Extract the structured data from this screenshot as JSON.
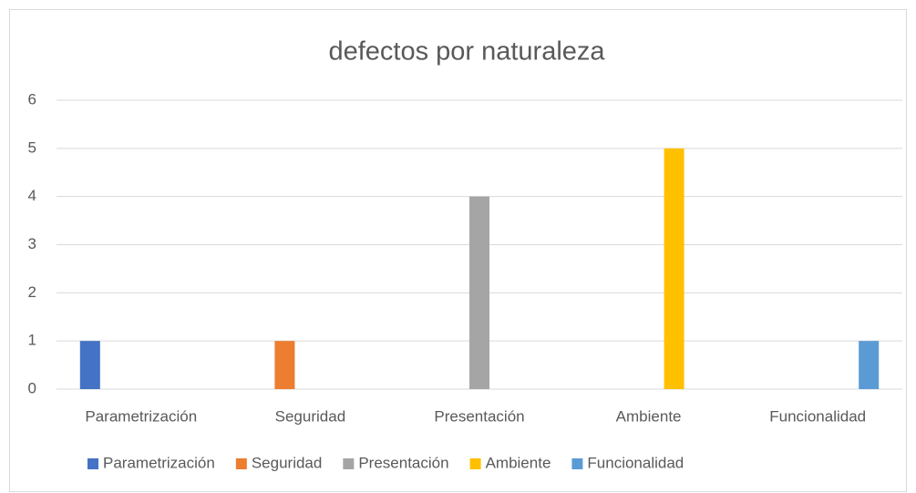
{
  "chart_data": {
    "type": "bar",
    "title": "defectos por naturaleza",
    "categories": [
      "Parametrización",
      "Seguridad",
      "Presentación",
      "Ambiente",
      "Funcionalidad"
    ],
    "series": [
      {
        "name": "Parametrización",
        "color": "#4472c4",
        "values": [
          1,
          null,
          null,
          null,
          null
        ]
      },
      {
        "name": "Seguridad",
        "color": "#ed7d31",
        "values": [
          null,
          1,
          null,
          null,
          null
        ]
      },
      {
        "name": "Presentación",
        "color": "#a5a5a5",
        "values": [
          null,
          null,
          4,
          null,
          null
        ]
      },
      {
        "name": "Ambiente",
        "color": "#ffc000",
        "values": [
          null,
          null,
          null,
          5,
          null
        ]
      },
      {
        "name": "Funcionalidad",
        "color": "#5b9bd5",
        "values": [
          null,
          null,
          null,
          null,
          1
        ]
      }
    ],
    "ylim": [
      0,
      6
    ],
    "yticks": [
      0,
      1,
      2,
      3,
      4,
      5,
      6
    ],
    "grid": true,
    "legend": "bottom"
  }
}
